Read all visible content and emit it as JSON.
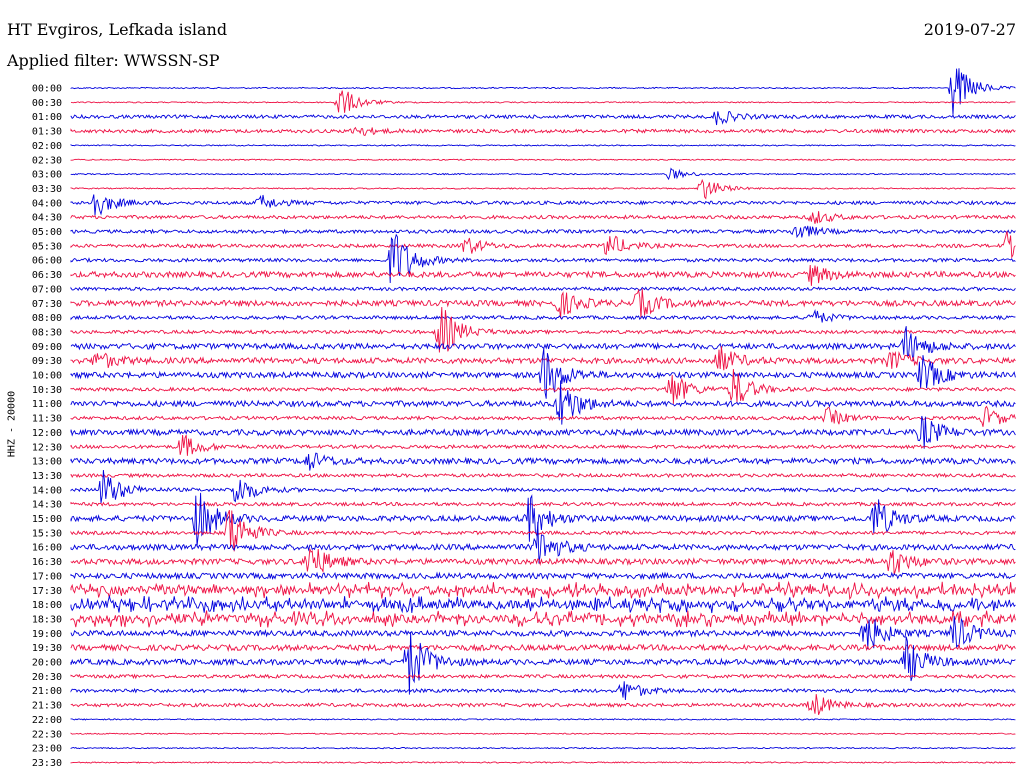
{
  "header": {
    "title": "HT Evgiros, Lefkada island",
    "date": "2019-07-27",
    "filter": "Applied filter: WWSSN-SP"
  },
  "chart_data": {
    "type": "line",
    "title": "HT Evgiros, Lefkada island",
    "subtitle": "Applied filter: WWSSN-SP",
    "date": "2019-07-27",
    "ylabel": "HHZ - 20000",
    "row_labels": [
      "00:00",
      "00:30",
      "01:00",
      "01:30",
      "02:00",
      "02:30",
      "03:00",
      "03:30",
      "04:00",
      "04:30",
      "05:00",
      "05:30",
      "06:00",
      "06:30",
      "07:00",
      "07:30",
      "08:00",
      "08:30",
      "09:00",
      "09:30",
      "10:00",
      "10:30",
      "11:00",
      "11:30",
      "12:00",
      "12:30",
      "13:00",
      "13:30",
      "14:00",
      "14:30",
      "15:00",
      "15:30",
      "16:00",
      "16:30",
      "17:00",
      "17:30",
      "18:00",
      "18:30",
      "19:00",
      "19:30",
      "20:00",
      "20:30",
      "21:00",
      "21:30",
      "22:00",
      "22:30",
      "23:00",
      "23:30"
    ],
    "series_colors": [
      "#0000dd",
      "#ee1144"
    ],
    "activity": [
      0,
      0,
      1,
      1,
      0,
      0,
      0,
      0,
      1,
      1,
      1,
      1,
      1,
      2,
      1,
      2,
      1,
      1,
      2,
      2,
      2,
      1,
      2,
      1,
      2,
      1,
      2,
      1,
      1,
      1,
      2,
      1,
      2,
      2,
      2,
      3,
      3,
      3,
      2,
      2,
      2,
      1,
      1,
      1,
      0,
      0,
      0,
      0
    ],
    "events": [
      {
        "row": 0,
        "minute": 28.0,
        "amplitude": 30
      },
      {
        "row": 1,
        "minute": 8.5,
        "amplitude": 18
      },
      {
        "row": 2,
        "minute": 20.5,
        "amplitude": 8
      },
      {
        "row": 3,
        "minute": 9.0,
        "amplitude": 6
      },
      {
        "row": 6,
        "minute": 19.0,
        "amplitude": 6
      },
      {
        "row": 7,
        "minute": 20.0,
        "amplitude": 14
      },
      {
        "row": 8,
        "minute": 0.7,
        "amplitude": 16
      },
      {
        "row": 8,
        "minute": 6.0,
        "amplitude": 8
      },
      {
        "row": 9,
        "minute": 23.5,
        "amplitude": 8
      },
      {
        "row": 10,
        "minute": 23.0,
        "amplitude": 10
      },
      {
        "row": 11,
        "minute": 12.5,
        "amplitude": 10
      },
      {
        "row": 11,
        "minute": 17.0,
        "amplitude": 14
      },
      {
        "row": 11,
        "minute": 29.7,
        "amplitude": 14
      },
      {
        "row": 12,
        "minute": 10.2,
        "amplitude": 38
      },
      {
        "row": 13,
        "minute": 23.5,
        "amplitude": 10
      },
      {
        "row": 15,
        "minute": 15.5,
        "amplitude": 14
      },
      {
        "row": 15,
        "minute": 18.0,
        "amplitude": 16
      },
      {
        "row": 16,
        "minute": 23.5,
        "amplitude": 8
      },
      {
        "row": 17,
        "minute": 11.7,
        "amplitude": 30
      },
      {
        "row": 18,
        "minute": 26.5,
        "amplitude": 20
      },
      {
        "row": 19,
        "minute": 0.8,
        "amplitude": 10
      },
      {
        "row": 19,
        "minute": 20.5,
        "amplitude": 16
      },
      {
        "row": 19,
        "minute": 26.0,
        "amplitude": 10
      },
      {
        "row": 20,
        "minute": 15.0,
        "amplitude": 30
      },
      {
        "row": 20,
        "minute": 27.0,
        "amplitude": 20
      },
      {
        "row": 21,
        "minute": 19.0,
        "amplitude": 20
      },
      {
        "row": 21,
        "minute": 21.0,
        "amplitude": 22
      },
      {
        "row": 22,
        "minute": 15.5,
        "amplitude": 28
      },
      {
        "row": 23,
        "minute": 24.0,
        "amplitude": 10
      },
      {
        "row": 23,
        "minute": 29.0,
        "amplitude": 12
      },
      {
        "row": 24,
        "minute": 27.0,
        "amplitude": 18
      },
      {
        "row": 25,
        "minute": 3.5,
        "amplitude": 14
      },
      {
        "row": 26,
        "minute": 7.5,
        "amplitude": 10
      },
      {
        "row": 28,
        "minute": 1.0,
        "amplitude": 22
      },
      {
        "row": 28,
        "minute": 5.2,
        "amplitude": 18
      },
      {
        "row": 30,
        "minute": 4.0,
        "amplitude": 30
      },
      {
        "row": 30,
        "minute": 14.5,
        "amplitude": 26
      },
      {
        "row": 30,
        "minute": 25.5,
        "amplitude": 24
      },
      {
        "row": 31,
        "minute": 5.0,
        "amplitude": 32
      },
      {
        "row": 32,
        "minute": 14.8,
        "amplitude": 24
      },
      {
        "row": 33,
        "minute": 7.5,
        "amplitude": 22
      },
      {
        "row": 33,
        "minute": 26.0,
        "amplitude": 16
      },
      {
        "row": 38,
        "minute": 25.2,
        "amplitude": 22
      },
      {
        "row": 38,
        "minute": 28.0,
        "amplitude": 20
      },
      {
        "row": 40,
        "minute": 10.7,
        "amplitude": 38
      },
      {
        "row": 40,
        "minute": 26.5,
        "amplitude": 24
      },
      {
        "row": 42,
        "minute": 17.5,
        "amplitude": 12
      },
      {
        "row": 43,
        "minute": 23.5,
        "amplitude": 14
      }
    ]
  }
}
